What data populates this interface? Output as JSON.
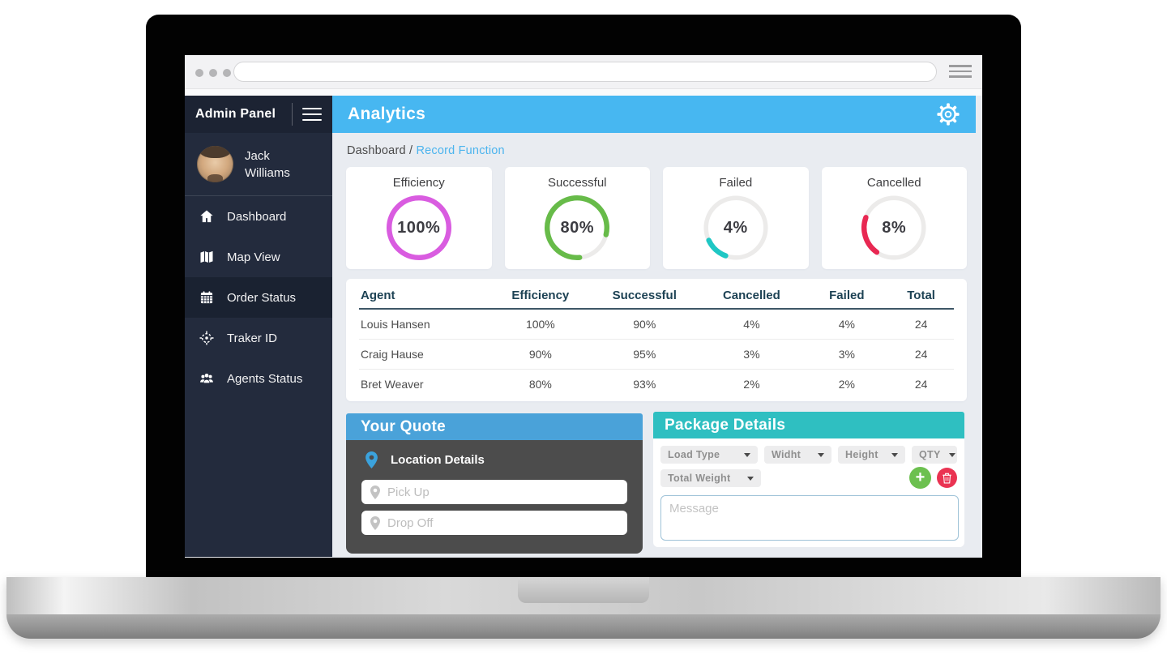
{
  "browser": {
    "address_value": ""
  },
  "sidebar": {
    "brand": "Admin Panel",
    "user": {
      "first": "Jack",
      "last": "Williams"
    },
    "items": [
      {
        "label": "Dashboard",
        "icon": "home-icon",
        "active": false
      },
      {
        "label": "Map View",
        "icon": "map-icon",
        "active": false
      },
      {
        "label": "Order Status",
        "icon": "calendar-icon",
        "active": true
      },
      {
        "label": "Traker ID",
        "icon": "target-icon",
        "active": false
      },
      {
        "label": "Agents Status",
        "icon": "users-icon",
        "active": false
      }
    ]
  },
  "header": {
    "title": "Analytics"
  },
  "breadcrumb": {
    "parent": "Dashboard",
    "separator": " / ",
    "current": "Record Function"
  },
  "stats": [
    {
      "label": "Efficiency",
      "value": "100%",
      "percent": 100,
      "color": "#d95ce0",
      "arc_start_deg": 0,
      "arc_sweep_deg": 360
    },
    {
      "label": "Successful",
      "value": "80%",
      "percent": 80,
      "color": "#67bb49",
      "arc_start_deg": 175,
      "arc_sweep_deg": 288
    },
    {
      "label": "Failed",
      "value": "4%",
      "percent": 4,
      "color": "#1fc7c4",
      "arc_start_deg": 200,
      "arc_sweep_deg": 45
    },
    {
      "label": "Cancelled",
      "value": "8%",
      "percent": 8,
      "color": "#e82852",
      "arc_start_deg": 215,
      "arc_sweep_deg": 75
    }
  ],
  "chart_data": {
    "type": "donut-gauges",
    "gauges": [
      {
        "label": "Efficiency",
        "value_pct": 100
      },
      {
        "label": "Successful",
        "value_pct": 80
      },
      {
        "label": "Failed",
        "value_pct": 4
      },
      {
        "label": "Cancelled",
        "value_pct": 8
      }
    ],
    "track_color": "#ecebea"
  },
  "table": {
    "columns": [
      "Agent",
      "Efficiency",
      "Successful",
      "Cancelled",
      "Failed",
      "Total"
    ],
    "rows": [
      [
        "Louis Hansen",
        "100%",
        "90%",
        "4%",
        "4%",
        "24"
      ],
      [
        "Craig Hause",
        "90%",
        "95%",
        "3%",
        "3%",
        "24"
      ],
      [
        "Bret Weaver",
        "80%",
        "93%",
        "2%",
        "2%",
        "24"
      ]
    ]
  },
  "quote": {
    "title": "Your Quote",
    "section_label": "Location Details",
    "pickup_placeholder": "Pick Up",
    "dropoff_placeholder": "Drop Off"
  },
  "package": {
    "title": "Package Details",
    "dropdowns_row1": [
      "Load Type",
      "Widht",
      "Height",
      "QTY"
    ],
    "dropdowns_row2": [
      "Total Weight"
    ],
    "message_placeholder": "Message"
  },
  "colors": {
    "topbar_blue": "#47b7f1",
    "quote_header_blue": "#4aa2d9",
    "package_header_teal": "#2fbfc1",
    "sidebar_bg": "#232b3d",
    "add_button_green": "#6cc04f",
    "delete_button_red": "#ea3352"
  }
}
